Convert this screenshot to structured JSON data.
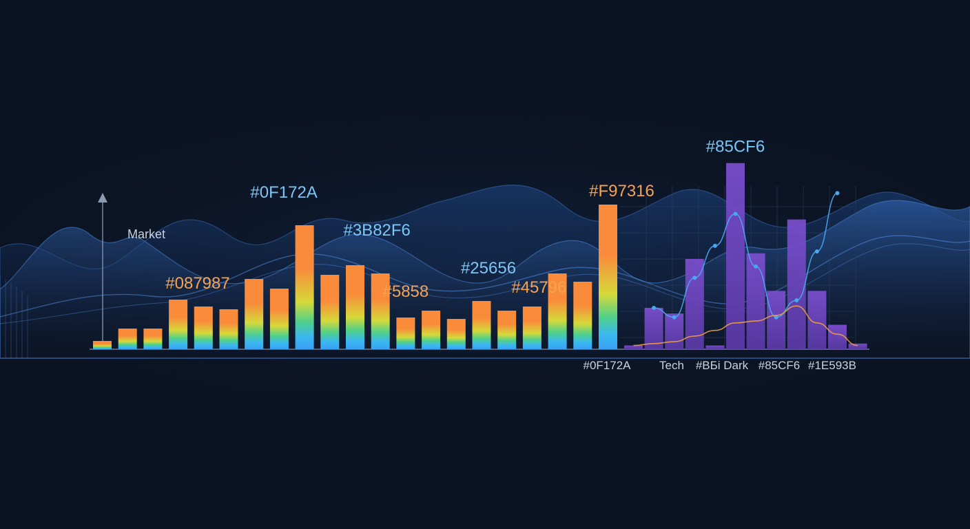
{
  "colors": {
    "background": "#0b1322",
    "orange": "#f98b3b",
    "purple": "#7b4ccc",
    "blue_label": "#7cc5f5",
    "orange_label": "#f9a24f",
    "wave": "#3b82f6",
    "tick": "#c9d3e0",
    "line_blue": "#4aa8f0",
    "line_orange": "#f0a040"
  },
  "chart_data": [
    {
      "type": "bar",
      "name": "left-gradient-bars",
      "ylabel": "Market",
      "ylim": [
        0,
        100
      ],
      "values": [
        6,
        15,
        15,
        36,
        31,
        29,
        51,
        44,
        90,
        54,
        61,
        55,
        23,
        28,
        22,
        35,
        28,
        31,
        55,
        49,
        105
      ],
      "annotations": [
        {
          "text": "#0F172A",
          "bar": 8,
          "color": "blue"
        },
        {
          "text": "#087987",
          "bar": 5,
          "color": "orange"
        },
        {
          "text": "#3B82F6",
          "bar": 11,
          "color": "blue"
        },
        {
          "text": "#25656",
          "bar": 15,
          "color": "blue"
        },
        {
          "text": "#5858",
          "bar": 12,
          "color": "orange"
        },
        {
          "text": "#45796",
          "bar": 17,
          "color": "orange"
        },
        {
          "text": "#F97316",
          "bar": 20,
          "color": "orange"
        }
      ]
    },
    {
      "type": "bar",
      "name": "right-purple-bars",
      "ylim": [
        0,
        100
      ],
      "values": [
        2,
        22,
        19,
        48,
        2,
        99,
        51,
        31,
        69,
        31,
        13,
        3
      ],
      "line_blue": [
        null,
        22,
        17,
        38,
        55,
        72,
        44,
        17,
        26,
        52,
        83,
        null
      ],
      "line_orange": [
        2,
        3,
        4,
        7,
        10,
        14,
        15,
        18,
        23,
        14,
        8,
        2
      ],
      "annotations": [
        {
          "text": "#85CF6",
          "bar": 5,
          "color": "blue"
        }
      ],
      "tick_labels": [
        "#0F172A",
        "Tech",
        "#BБi Dark",
        "#85CF6",
        "#1E593B"
      ]
    }
  ]
}
